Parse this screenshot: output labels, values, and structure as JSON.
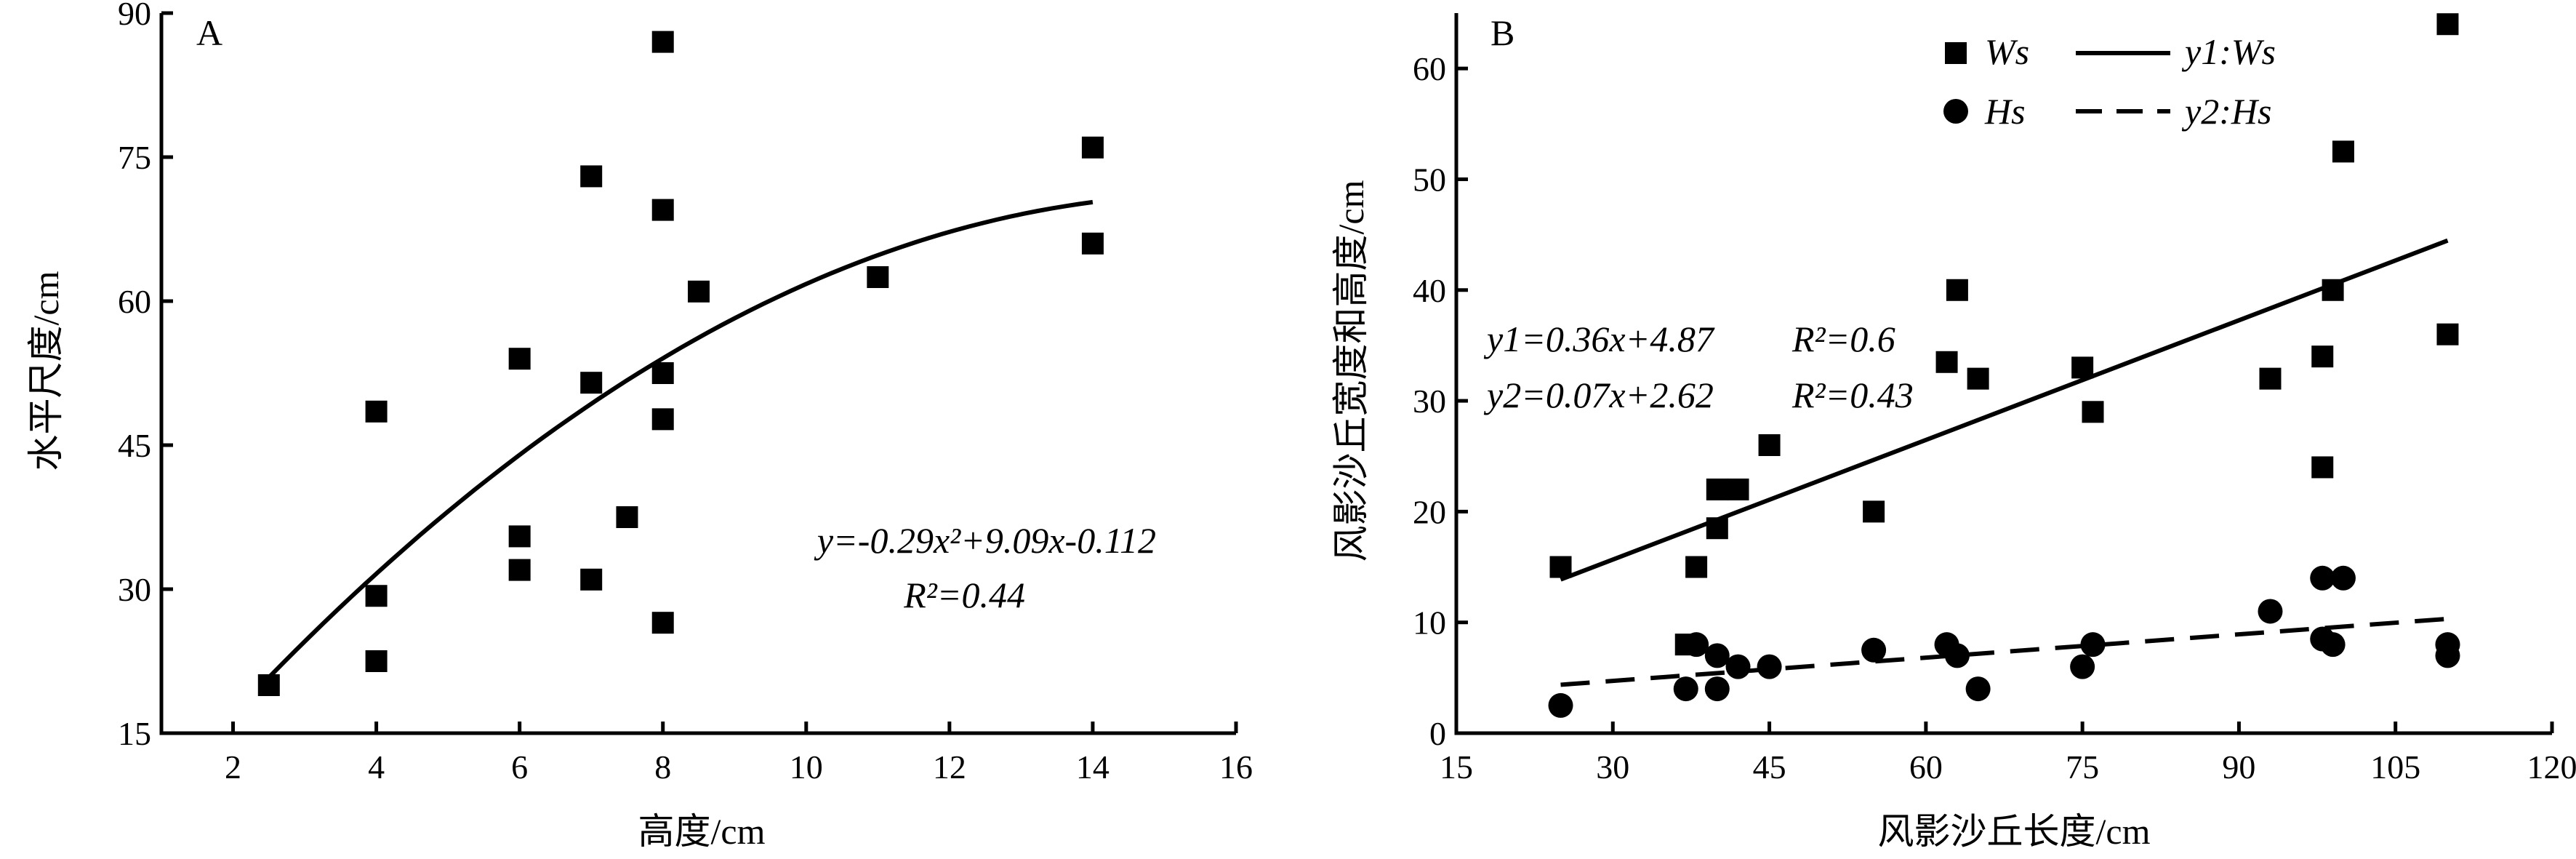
{
  "chart_data": [
    {
      "type": "scatter",
      "panel_label": "A",
      "xlabel": "高度/cm",
      "ylabel": "水平尺度/cm",
      "xlim": [
        1,
        16
      ],
      "ylim": [
        15,
        90
      ],
      "xticks": [
        2,
        4,
        6,
        8,
        10,
        12,
        14,
        16
      ],
      "yticks": [
        15,
        30,
        45,
        60,
        75,
        90
      ],
      "series": [
        {
          "marker": "square",
          "points": [
            [
              2.5,
              20
            ],
            [
              4,
              48.5
            ],
            [
              4,
              29.3
            ],
            [
              4,
              22.5
            ],
            [
              6,
              54
            ],
            [
              6,
              35.5
            ],
            [
              6,
              32
            ],
            [
              7,
              73
            ],
            [
              7,
              51.5
            ],
            [
              7,
              31
            ],
            [
              7.5,
              37.5
            ],
            [
              8,
              87
            ],
            [
              8,
              69.5
            ],
            [
              8,
              52.5
            ],
            [
              8,
              47.7
            ],
            [
              8,
              26.5
            ],
            [
              8.5,
              61
            ],
            [
              11,
              62.5
            ],
            [
              14,
              76
            ],
            [
              14,
              66
            ]
          ]
        }
      ],
      "fit": {
        "kind": "quadratic",
        "coef": [
          -0.29,
          9.09,
          -0.112
        ],
        "x_range": [
          2.5,
          14
        ],
        "style": "solid"
      },
      "annotations": {
        "equation": "y=-0.29x²+9.09x-0.112",
        "r2": "R²=0.44"
      }
    },
    {
      "type": "scatter",
      "panel_label": "B",
      "xlabel": "风影沙丘长度/cm",
      "ylabel": "风影沙丘宽度和高度/cm",
      "xlim": [
        15,
        120
      ],
      "ylim": [
        0,
        65
      ],
      "xticks": [
        15,
        30,
        45,
        60,
        75,
        90,
        105,
        120
      ],
      "yticks": [
        0,
        10,
        20,
        30,
        40,
        50,
        60
      ],
      "series": [
        {
          "name": "Ws",
          "marker": "square",
          "points": [
            [
              25,
              15
            ],
            [
              37,
              8
            ],
            [
              38,
              15
            ],
            [
              40,
              22
            ],
            [
              40,
              18.5
            ],
            [
              42,
              22
            ],
            [
              45,
              26
            ],
            [
              55,
              20
            ],
            [
              62,
              33.5
            ],
            [
              63,
              40
            ],
            [
              65,
              32
            ],
            [
              75,
              33
            ],
            [
              76,
              29
            ],
            [
              93,
              32
            ],
            [
              98,
              34
            ],
            [
              98,
              24
            ],
            [
              99,
              40
            ],
            [
              100,
              52.5
            ],
            [
              110,
              64
            ],
            [
              110,
              36
            ]
          ]
        },
        {
          "name": "Hs",
          "marker": "circle",
          "points": [
            [
              25,
              2.5
            ],
            [
              37,
              4
            ],
            [
              38,
              8
            ],
            [
              40,
              7
            ],
            [
              40,
              4
            ],
            [
              42,
              6
            ],
            [
              45,
              6
            ],
            [
              55,
              7.5
            ],
            [
              62,
              8
            ],
            [
              63,
              7
            ],
            [
              65,
              4
            ],
            [
              75,
              6
            ],
            [
              76,
              8
            ],
            [
              93,
              11
            ],
            [
              98,
              14
            ],
            [
              98,
              8.5
            ],
            [
              99,
              8
            ],
            [
              100,
              14
            ],
            [
              110,
              8
            ],
            [
              110,
              7
            ]
          ]
        }
      ],
      "fits": [
        {
          "name": "y1:Ws",
          "slope": 0.36,
          "intercept": 4.87,
          "x_range": [
            25,
            110
          ],
          "style": "solid"
        },
        {
          "name": "y2:Hs",
          "slope": 0.07,
          "intercept": 2.62,
          "x_range": [
            25,
            110
          ],
          "style": "dashed"
        }
      ],
      "annotations": {
        "eq1": "y1=0.36x+4.87",
        "r2_1": "R²=0.6",
        "eq2": "y2=0.07x+2.62",
        "r2_2": "R²=0.43"
      },
      "legend": {
        "placement": "top-right"
      }
    }
  ]
}
